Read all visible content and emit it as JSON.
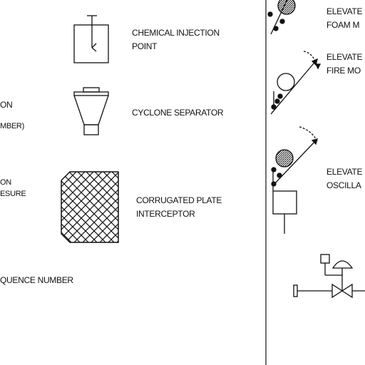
{
  "labels": {
    "chemical_injection_point": "CHEMICAL INJECTION\nPOINT",
    "cyclone_separator": "CYCLONE SEPARATOR",
    "corrugated_plate_interceptor": "CORRUGATED PLATE\nINTERCEPTOR",
    "left_fragment_1": "ON",
    "left_fragment_2": "MBER)",
    "left_fragment_3": "ON\nESURE",
    "left_fragment_4": "QUENCE NUMBER",
    "elevated_foam_monitor": "ELEVATE\nFOAM M",
    "elevated_fire_monitor": "ELEVATE\nFIRE MO",
    "elevated_oscillating": "ELEVATE\nOSCILLA"
  },
  "icons": [
    "chemical-injection-point-icon",
    "cyclone-separator-icon",
    "corrugated-plate-interceptor-icon",
    "elevated-foam-monitor-icon",
    "elevated-fire-monitor-icon",
    "elevated-oscillating-monitor-icon",
    "control-valve-icon"
  ],
  "colors": {
    "line": "#111111",
    "background": "#ffffff"
  }
}
